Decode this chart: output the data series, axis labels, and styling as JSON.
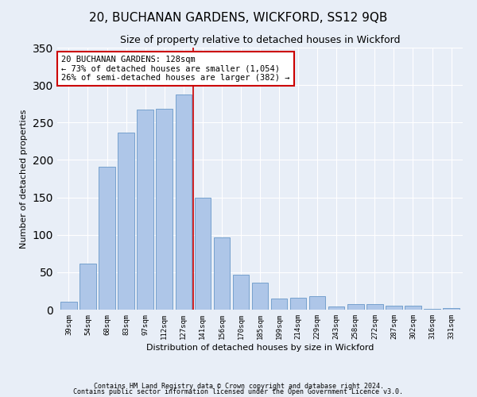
{
  "title": "20, BUCHANAN GARDENS, WICKFORD, SS12 9QB",
  "subtitle": "Size of property relative to detached houses in Wickford",
  "xlabel": "Distribution of detached houses by size in Wickford",
  "ylabel": "Number of detached properties",
  "categories": [
    "39sqm",
    "54sqm",
    "68sqm",
    "83sqm",
    "97sqm",
    "112sqm",
    "127sqm",
    "141sqm",
    "156sqm",
    "170sqm",
    "185sqm",
    "199sqm",
    "214sqm",
    "229sqm",
    "243sqm",
    "258sqm",
    "272sqm",
    "287sqm",
    "302sqm",
    "316sqm",
    "331sqm"
  ],
  "values": [
    11,
    62,
    191,
    236,
    267,
    268,
    287,
    150,
    97,
    47,
    36,
    15,
    16,
    18,
    4,
    7,
    7,
    5,
    5,
    1,
    2
  ],
  "bar_color": "#aec6e8",
  "bar_edge_color": "#6898c8",
  "vline_color": "#cc0000",
  "annotation_text": "20 BUCHANAN GARDENS: 128sqm\n← 73% of detached houses are smaller (1,054)\n26% of semi-detached houses are larger (382) →",
  "annotation_box_color": "#ffffff",
  "annotation_box_edge_color": "#cc0000",
  "footnote1": "Contains HM Land Registry data © Crown copyright and database right 2024.",
  "footnote2": "Contains public sector information licensed under the Open Government Licence v3.0.",
  "background_color": "#e8eef7",
  "ylim": [
    0,
    350
  ],
  "title_fontsize": 11,
  "subtitle_fontsize": 9,
  "ylabel_fontsize": 8,
  "xlabel_fontsize": 8,
  "tick_fontsize": 6.5,
  "annot_fontsize": 7.5,
  "footnote_fontsize": 6
}
